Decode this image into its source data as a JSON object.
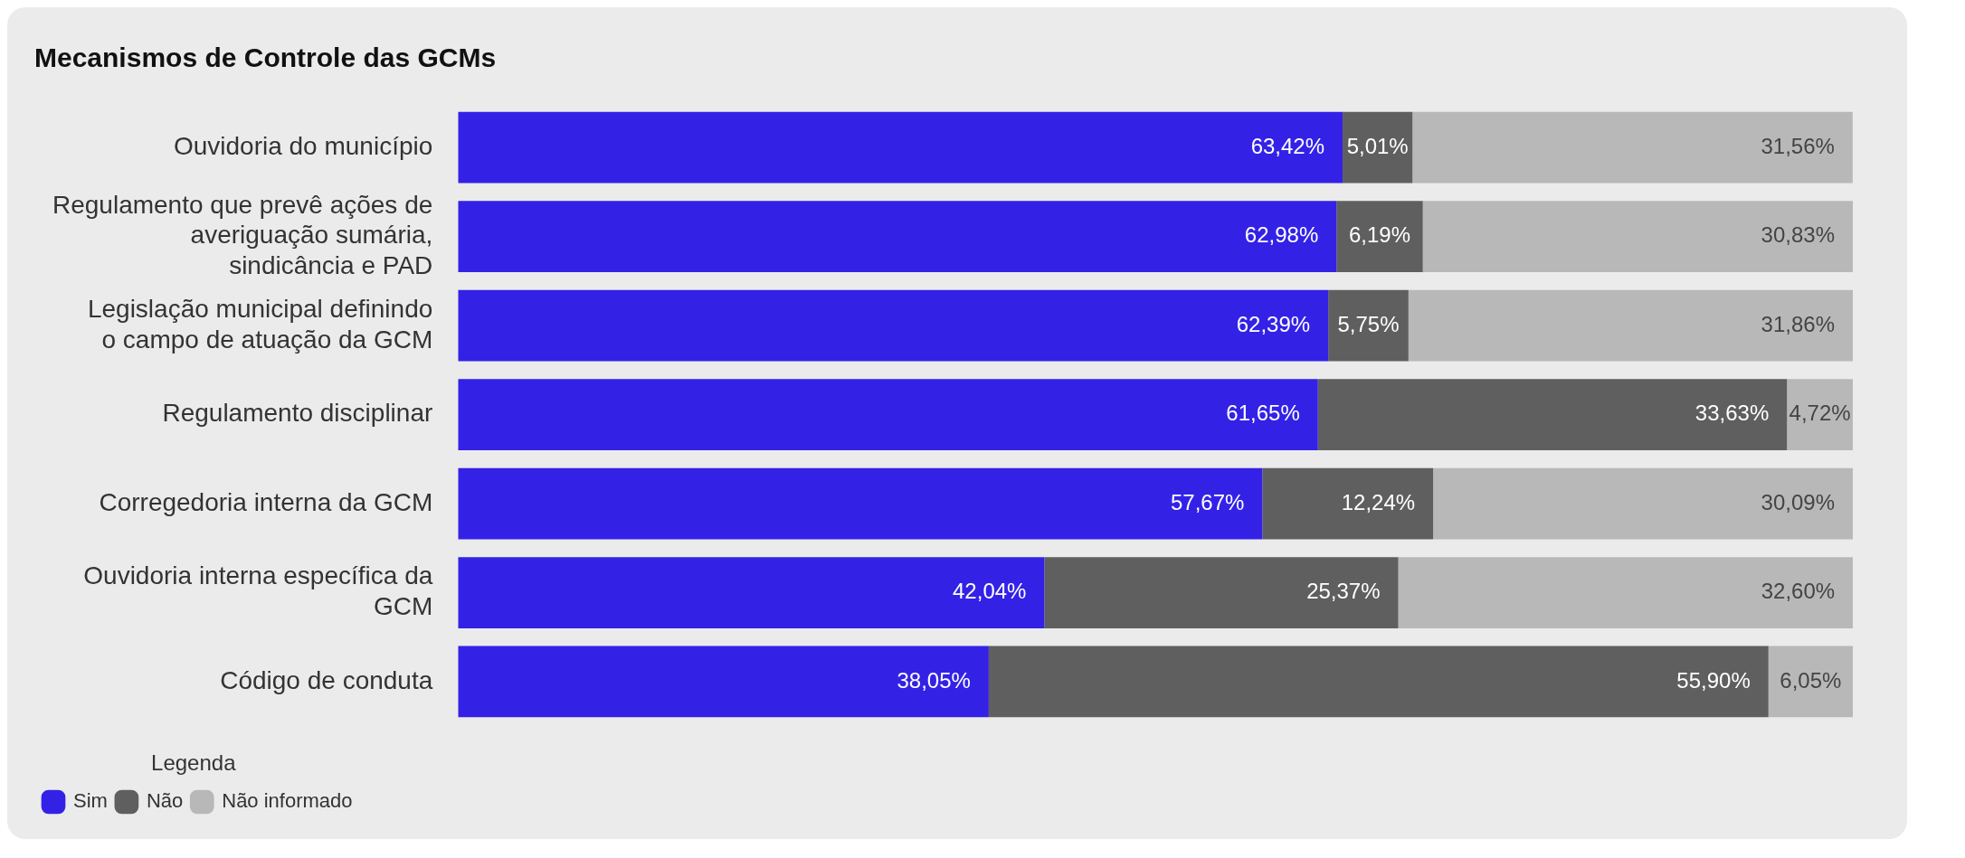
{
  "chart_data": {
    "type": "bar",
    "orientation": "horizontal",
    "stacked": true,
    "title": "Mecanismos de Controle das GCMs",
    "legend_title": "Legenda",
    "legend": "bottom left",
    "tick_labels": "y",
    "grid": false,
    "xlim": [
      0,
      100
    ],
    "categories": [
      "Ouvidoria do município",
      "Regulamento que prevê ações de averiguação sumária, sindicância e PAD",
      "Legislação municipal definindo o campo de atuação da GCM",
      "Regulamento disciplinar",
      "Corregedoria interna da GCM",
      "Ouvidoria interna específica da GCM",
      "Código de conduta"
    ],
    "series": [
      {
        "name": "Sim",
        "color": "#3322e6",
        "values": [
          63.42,
          62.98,
          62.39,
          61.65,
          57.67,
          42.04,
          38.05
        ],
        "value_labels": [
          "63,42%",
          "62,98%",
          "62,39%",
          "61,65%",
          "57,67%",
          "42,04%",
          "38,05%"
        ]
      },
      {
        "name": "Não",
        "color": "#5f5f5f",
        "values": [
          5.01,
          6.19,
          5.75,
          33.63,
          12.24,
          25.37,
          55.9
        ],
        "value_labels": [
          "5,01%",
          "6,19%",
          "5,75%",
          "33,63%",
          "12,24%",
          "25,37%",
          "55,90%"
        ]
      },
      {
        "name": "Não informado",
        "color": "#b8b8b8",
        "values": [
          31.56,
          30.83,
          31.86,
          4.72,
          30.09,
          32.6,
          6.05
        ],
        "value_labels": [
          "31,56%",
          "30,83%",
          "31,86%",
          "4,72%",
          "30,09%",
          "32,60%",
          "6,05%"
        ]
      }
    ]
  }
}
